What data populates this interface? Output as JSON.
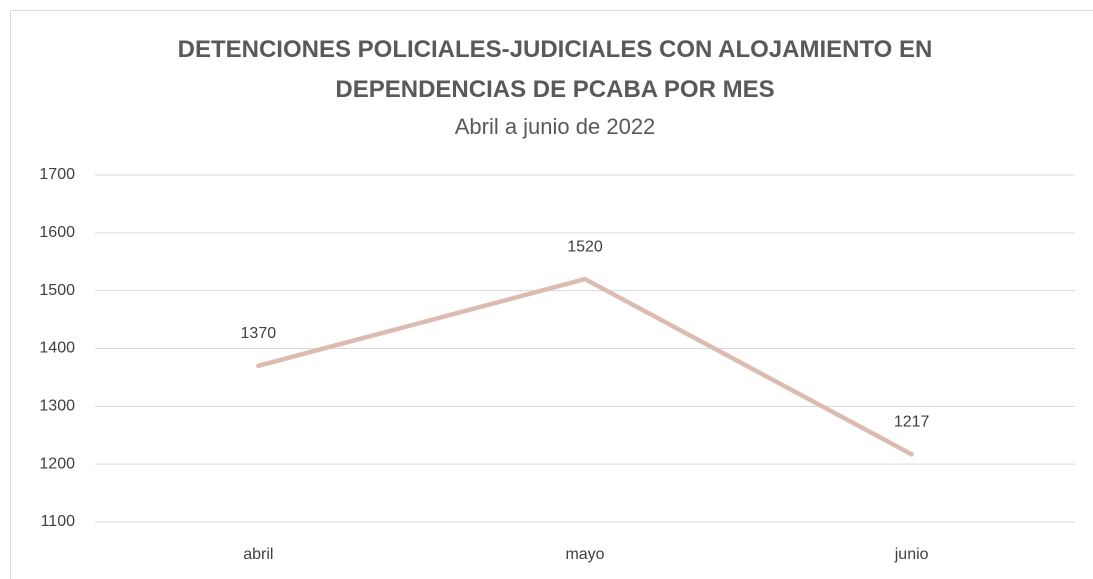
{
  "chart_data": {
    "type": "line",
    "title": "DETENCIONES POLICIALES-JUDICIALES CON ALOJAMIENTO EN DEPENDENCIAS DE PCABA POR MES",
    "subtitle": "Abril a junio de 2022",
    "categories": [
      "abril",
      "mayo",
      "junio"
    ],
    "values": [
      1370,
      1520,
      1217
    ],
    "color": "#dcbcb1",
    "ylim": [
      1100,
      1700
    ],
    "yticks": [
      1100,
      1200,
      1300,
      1400,
      1500,
      1600,
      1700
    ],
    "grid": true
  }
}
